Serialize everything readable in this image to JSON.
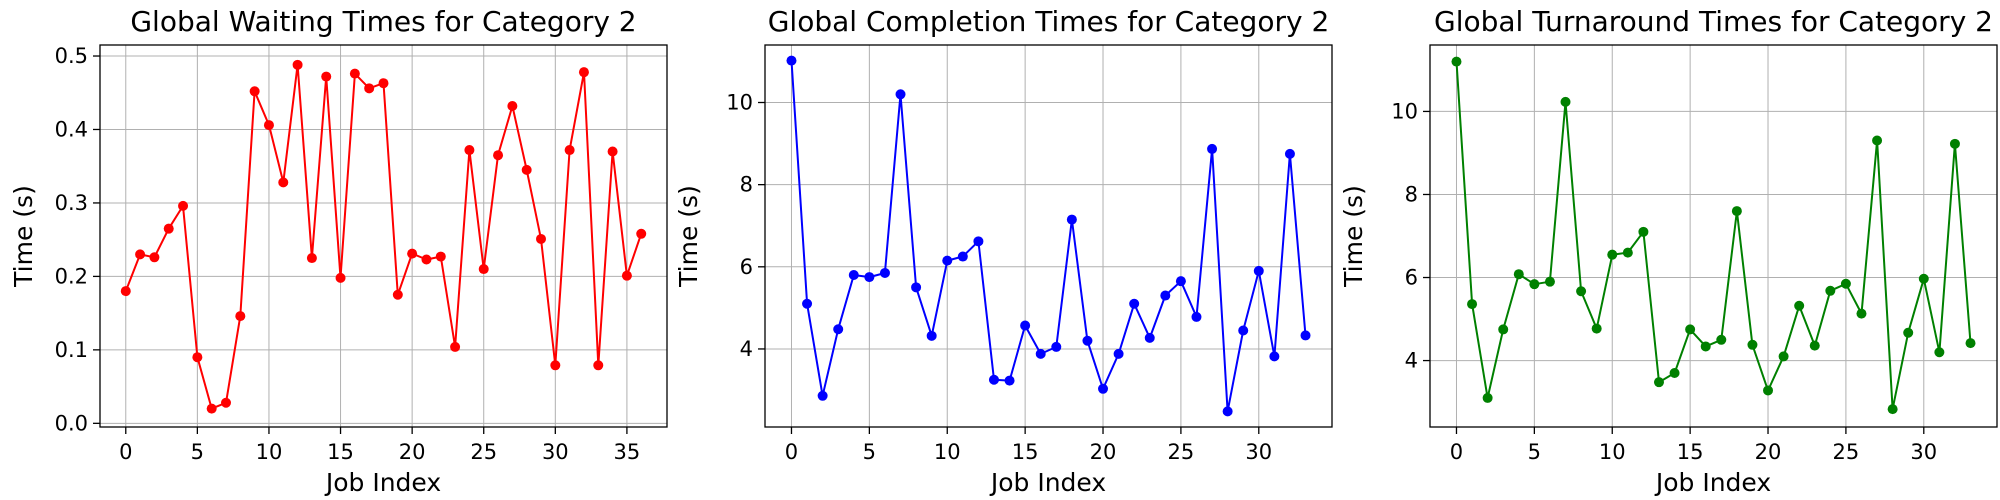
{
  "chart_data": [
    {
      "type": "line",
      "title": "Global Waiting Times for Category 2",
      "xlabel": "Job Index",
      "ylabel": "Time (s)",
      "color": "#ff0000",
      "xlim": [
        -1.8,
        37.8
      ],
      "ylim": [
        -0.005,
        0.515
      ],
      "xticks": [
        0,
        5,
        10,
        15,
        20,
        25,
        30,
        35
      ],
      "xtick_labels": [
        "0",
        "5",
        "10",
        "15",
        "20",
        "25",
        "30",
        "35"
      ],
      "yticks": [
        0.0,
        0.1,
        0.2,
        0.3,
        0.4,
        0.5
      ],
      "ytick_labels": [
        "0.0",
        "0.1",
        "0.2",
        "0.3",
        "0.4",
        "0.5"
      ],
      "grid": true,
      "x": [
        0,
        1,
        2,
        3,
        4,
        5,
        6,
        7,
        8,
        9,
        10,
        11,
        12,
        13,
        14,
        15,
        16,
        17,
        18,
        19,
        20,
        21,
        22,
        23,
        24,
        25,
        26,
        27,
        28,
        29,
        30,
        31,
        32,
        33,
        34,
        35,
        36
      ],
      "y": [
        0.18,
        0.23,
        0.226,
        0.265,
        0.296,
        0.09,
        0.02,
        0.028,
        0.146,
        0.452,
        0.406,
        0.328,
        0.488,
        0.225,
        0.472,
        0.198,
        0.476,
        0.456,
        0.463,
        0.175,
        0.231,
        0.223,
        0.227,
        0.104,
        0.372,
        0.21,
        0.365,
        0.432,
        0.345,
        0.251,
        0.079,
        0.372,
        0.478,
        0.079,
        0.37,
        0.201,
        0.258
      ]
    },
    {
      "type": "line",
      "title": "Global Completion Times for Category 2",
      "xlabel": "Job Index",
      "ylabel": "Time (s)",
      "color": "#0000ff",
      "xlim": [
        -1.7,
        34.7
      ],
      "ylim": [
        2.1,
        11.4
      ],
      "xticks": [
        0,
        5,
        10,
        15,
        20,
        25,
        30
      ],
      "xtick_labels": [
        "0",
        "5",
        "10",
        "15",
        "20",
        "25",
        "30"
      ],
      "yticks": [
        4,
        6,
        8,
        10
      ],
      "ytick_labels": [
        "4",
        "6",
        "8",
        "10"
      ],
      "grid": true,
      "x": [
        0,
        1,
        2,
        3,
        4,
        5,
        6,
        7,
        8,
        9,
        10,
        11,
        12,
        13,
        14,
        15,
        16,
        17,
        18,
        19,
        20,
        21,
        22,
        23,
        24,
        25,
        26,
        27,
        28,
        29,
        30,
        31,
        32,
        33
      ],
      "y": [
        11.02,
        5.1,
        2.86,
        4.48,
        5.8,
        5.75,
        5.85,
        10.2,
        5.5,
        4.32,
        6.15,
        6.25,
        6.62,
        3.25,
        3.23,
        4.57,
        3.88,
        4.05,
        7.15,
        4.2,
        3.03,
        3.88,
        5.1,
        4.27,
        5.3,
        5.65,
        4.78,
        8.87,
        2.48,
        4.45,
        5.9,
        3.82,
        8.75,
        4.33
      ]
    },
    {
      "type": "line",
      "title": "Global Turnaround Times for Category 2",
      "xlabel": "Job Index",
      "ylabel": "Time (s)",
      "color": "#008000",
      "xlim": [
        -1.7,
        34.7
      ],
      "ylim": [
        2.4,
        11.6
      ],
      "xticks": [
        0,
        5,
        10,
        15,
        20,
        25,
        30
      ],
      "xtick_labels": [
        "0",
        "5",
        "10",
        "15",
        "20",
        "25",
        "30"
      ],
      "yticks": [
        4,
        6,
        8,
        10
      ],
      "ytick_labels": [
        "4",
        "6",
        "8",
        "10"
      ],
      "grid": true,
      "x": [
        0,
        1,
        2,
        3,
        4,
        5,
        6,
        7,
        8,
        9,
        10,
        11,
        12,
        13,
        14,
        15,
        16,
        17,
        18,
        19,
        20,
        21,
        22,
        23,
        24,
        25,
        26,
        27,
        28,
        29,
        30,
        31,
        32,
        33
      ],
      "y": [
        11.2,
        5.36,
        3.1,
        4.75,
        6.08,
        5.84,
        5.9,
        10.23,
        5.67,
        4.77,
        6.55,
        6.6,
        7.1,
        3.48,
        3.7,
        4.75,
        4.34,
        4.5,
        7.6,
        4.38,
        3.28,
        4.1,
        5.32,
        4.36,
        5.68,
        5.85,
        5.13,
        9.3,
        2.83,
        4.67,
        5.97,
        4.2,
        9.22,
        4.42
      ]
    }
  ]
}
